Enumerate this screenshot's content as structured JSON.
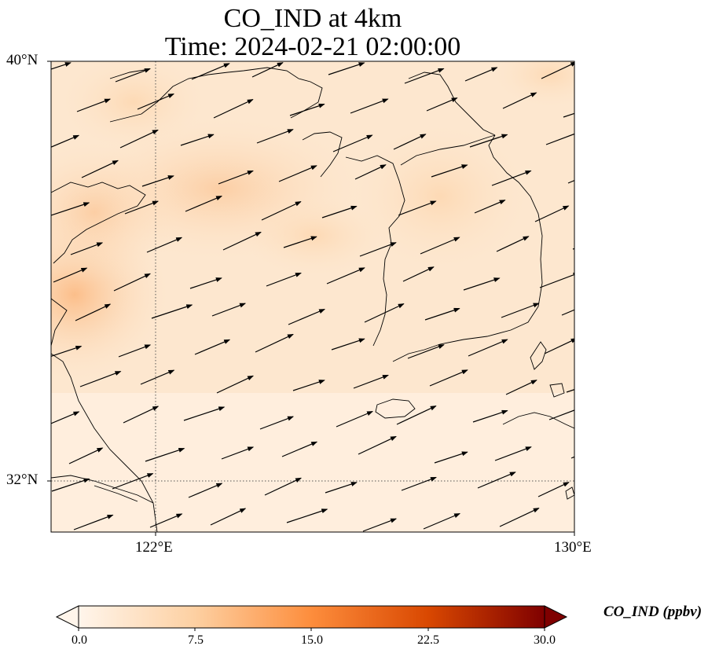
{
  "title": {
    "line1": "CO_IND at 4km",
    "line2": "Time: 2024-02-21 02:00:00"
  },
  "map": {
    "lat_labels": [
      "40°N",
      "32°N"
    ],
    "lon_labels": [
      "122°E",
      "130°E"
    ],
    "lat_range": [
      31,
      40
    ],
    "lon_range": [
      120,
      130
    ],
    "gridlines": "dotted",
    "coastline_color": "#000000",
    "vector_color": "#000000"
  },
  "colorbar": {
    "label": "CO_IND (ppbv)",
    "ticks": [
      "0.0",
      "7.5",
      "15.0",
      "22.5",
      "30.0"
    ],
    "range": [
      0,
      30
    ],
    "colormap": [
      "#fff5eb",
      "#fdd0a2",
      "#fd8d3c",
      "#d94801",
      "#7f0000"
    ],
    "extend": "both"
  }
}
